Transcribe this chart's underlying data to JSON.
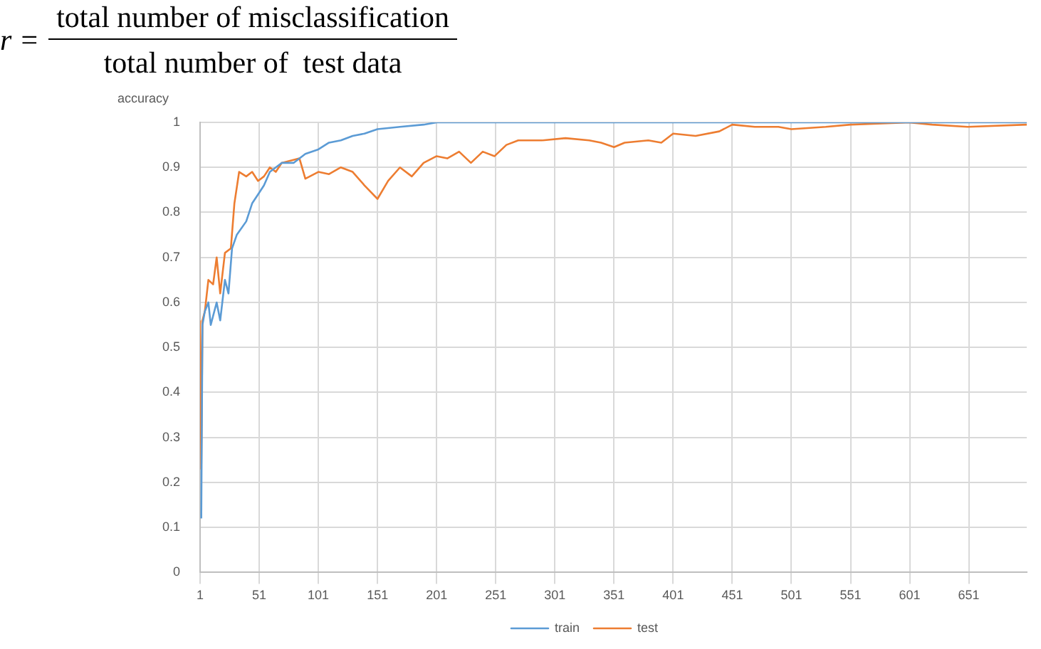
{
  "chart_data": {
    "type": "line",
    "annotations": [
      "r =",
      "total number of misclassification",
      "total number of  test data"
    ],
    "ylabel": "accuracy",
    "xlim": [
      1,
      700
    ],
    "xticks": [
      1,
      51,
      101,
      151,
      201,
      251,
      301,
      351,
      401,
      451,
      501,
      551,
      601,
      651
    ],
    "ylim": [
      0,
      1
    ],
    "yticks": [
      0,
      0.1,
      0.2,
      0.3,
      0.4,
      0.5,
      0.6,
      0.7,
      0.8,
      0.9,
      1
    ],
    "grid": true,
    "legend": "bottom",
    "marker": "none",
    "line_style": "solid",
    "series": [
      {
        "name": "train",
        "color": "#5b9bd5",
        "x": [
          2,
          3,
          5,
          8,
          10,
          15,
          18,
          22,
          25,
          28,
          32,
          40,
          45,
          50,
          55,
          60,
          65,
          70,
          80,
          90,
          101,
          110,
          120,
          130,
          140,
          151,
          170,
          190,
          201,
          700
        ],
        "values": [
          0.12,
          0.55,
          0.58,
          0.6,
          0.55,
          0.6,
          0.56,
          0.65,
          0.62,
          0.72,
          0.75,
          0.78,
          0.82,
          0.84,
          0.86,
          0.89,
          0.9,
          0.91,
          0.91,
          0.93,
          0.94,
          0.955,
          0.96,
          0.97,
          0.975,
          0.985,
          0.99,
          0.995,
          1,
          1
        ]
      },
      {
        "name": "test",
        "color": "#ed7d31",
        "x": [
          1,
          2,
          3,
          5,
          8,
          12,
          15,
          18,
          22,
          27,
          30,
          34,
          40,
          45,
          50,
          55,
          60,
          65,
          70,
          85,
          90,
          101,
          110,
          120,
          130,
          140,
          151,
          160,
          170,
          180,
          190,
          201,
          210,
          220,
          230,
          240,
          250,
          260,
          270,
          290,
          310,
          330,
          340,
          351,
          360,
          380,
          391,
          401,
          420,
          440,
          451,
          470,
          490,
          501,
          530,
          551,
          600,
          620,
          650,
          700
        ],
        "values": [
          0.56,
          0.23,
          0.56,
          0.58,
          0.65,
          0.64,
          0.7,
          0.62,
          0.71,
          0.72,
          0.82,
          0.89,
          0.88,
          0.89,
          0.87,
          0.88,
          0.9,
          0.89,
          0.91,
          0.92,
          0.875,
          0.89,
          0.885,
          0.9,
          0.89,
          0.86,
          0.83,
          0.87,
          0.9,
          0.88,
          0.91,
          0.925,
          0.92,
          0.935,
          0.91,
          0.935,
          0.925,
          0.95,
          0.96,
          0.96,
          0.965,
          0.96,
          0.955,
          0.945,
          0.955,
          0.96,
          0.955,
          0.975,
          0.97,
          0.98,
          0.995,
          0.99,
          0.99,
          0.985,
          0.99,
          0.995,
          1,
          0.995,
          0.99,
          0.995
        ]
      }
    ]
  }
}
